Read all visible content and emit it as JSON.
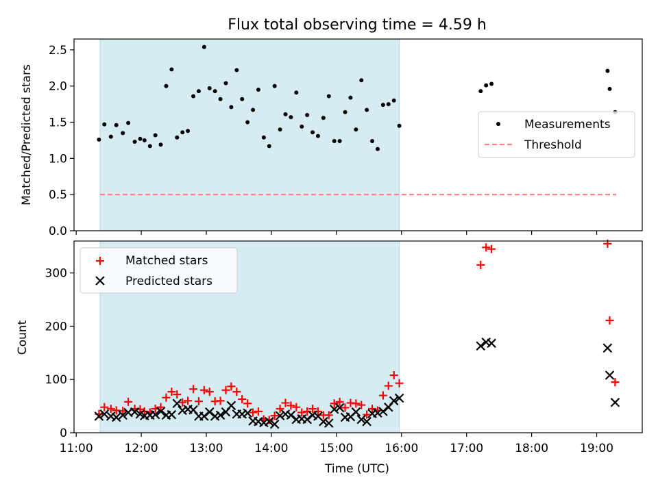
{
  "title": "Flux total observing time = 4.59 h",
  "colors": {
    "night_span": "#add8e6",
    "measurements": "#000000",
    "threshold": "#ff7f7f",
    "matched": "#ff0000",
    "predicted": "#000000"
  },
  "chart_data": [
    {
      "type": "scatter",
      "ylabel": "Matched/Predicted stars",
      "xlim": [
        "10:58",
        "19:42"
      ],
      "ylim": [
        0,
        2.65
      ],
      "yticks": [
        "0.0",
        "0.5",
        "1.0",
        "1.5",
        "2.0",
        "2.5"
      ],
      "shaded_span": [
        "11:22",
        "15:58"
      ],
      "legend_placement": "center-right",
      "series": [
        {
          "name": "Measurements",
          "marker": "dot",
          "points": [
            [
              "11:21",
              1.26
            ],
            [
              "11:26",
              1.47
            ],
            [
              "11:32",
              1.3
            ],
            [
              "11:37",
              1.46
            ],
            [
              "11:43",
              1.35
            ],
            [
              "11:48",
              1.49
            ],
            [
              "11:54",
              1.23
            ],
            [
              "11:59",
              1.27
            ],
            [
              "12:03",
              1.25
            ],
            [
              "12:08",
              1.17
            ],
            [
              "12:13",
              1.32
            ],
            [
              "12:18",
              1.19
            ],
            [
              "12:23",
              2.0
            ],
            [
              "12:28",
              2.23
            ],
            [
              "12:33",
              1.29
            ],
            [
              "12:38",
              1.36
            ],
            [
              "12:43",
              1.38
            ],
            [
              "12:48",
              1.86
            ],
            [
              "12:53",
              1.93
            ],
            [
              "12:58",
              2.54
            ],
            [
              "13:03",
              1.97
            ],
            [
              "13:08",
              1.93
            ],
            [
              "13:13",
              1.82
            ],
            [
              "13:18",
              2.04
            ],
            [
              "13:23",
              1.71
            ],
            [
              "13:28",
              2.22
            ],
            [
              "13:33",
              1.82
            ],
            [
              "13:38",
              1.5
            ],
            [
              "13:43",
              1.67
            ],
            [
              "13:48",
              1.95
            ],
            [
              "13:53",
              1.29
            ],
            [
              "13:58",
              1.17
            ],
            [
              "14:03",
              2.0
            ],
            [
              "14:08",
              1.4
            ],
            [
              "14:13",
              1.61
            ],
            [
              "14:18",
              1.57
            ],
            [
              "14:23",
              1.91
            ],
            [
              "14:28",
              1.44
            ],
            [
              "14:33",
              1.6
            ],
            [
              "14:38",
              1.36
            ],
            [
              "14:43",
              1.31
            ],
            [
              "14:48",
              1.56
            ],
            [
              "14:53",
              1.86
            ],
            [
              "14:58",
              1.24
            ],
            [
              "15:03",
              1.24
            ],
            [
              "15:08",
              1.64
            ],
            [
              "15:13",
              1.84
            ],
            [
              "15:18",
              1.4
            ],
            [
              "15:23",
              2.08
            ],
            [
              "15:28",
              1.67
            ],
            [
              "15:33",
              1.24
            ],
            [
              "15:38",
              1.13
            ],
            [
              "15:43",
              1.74
            ],
            [
              "15:48",
              1.75
            ],
            [
              "15:53",
              1.8
            ],
            [
              "15:58",
              1.45
            ],
            [
              "17:13",
              1.93
            ],
            [
              "17:18",
              2.01
            ],
            [
              "17:23",
              2.03
            ],
            [
              "19:10",
              2.21
            ],
            [
              "19:12",
              1.96
            ],
            [
              "19:17",
              1.64
            ]
          ]
        },
        {
          "name": "Threshold",
          "style": "dashed",
          "points": [
            [
              "11:22",
              0.5
            ],
            [
              "19:18",
              0.5
            ]
          ]
        }
      ]
    },
    {
      "type": "scatter",
      "xlabel": "Time (UTC)",
      "ylabel": "Count",
      "xlim": [
        "10:58",
        "19:42"
      ],
      "ylim": [
        0,
        360
      ],
      "xticks": [
        "11:00",
        "12:00",
        "13:00",
        "14:00",
        "15:00",
        "16:00",
        "17:00",
        "18:00",
        "19:00"
      ],
      "yticks": [
        "0",
        "100",
        "200",
        "300"
      ],
      "shaded_span": [
        "11:22",
        "15:58"
      ],
      "legend_placement": "upper-left",
      "series": [
        {
          "name": "Matched stars",
          "marker": "plus",
          "points": [
            [
              "11:21",
              35
            ],
            [
              "11:26",
              48
            ],
            [
              "11:32",
              45
            ],
            [
              "11:37",
              42
            ],
            [
              "11:43",
              41
            ],
            [
              "11:48",
              58
            ],
            [
              "11:54",
              45
            ],
            [
              "11:59",
              44
            ],
            [
              "12:03",
              40
            ],
            [
              "12:08",
              38
            ],
            [
              "12:13",
              45
            ],
            [
              "12:18",
              48
            ],
            [
              "12:23",
              66
            ],
            [
              "12:28",
              77
            ],
            [
              "12:33",
              72
            ],
            [
              "12:38",
              57
            ],
            [
              "12:43",
              60
            ],
            [
              "12:48",
              82
            ],
            [
              "12:53",
              59
            ],
            [
              "12:58",
              80
            ],
            [
              "13:03",
              77
            ],
            [
              "13:08",
              59
            ],
            [
              "13:13",
              60
            ],
            [
              "13:18",
              80
            ],
            [
              "13:23",
              87
            ],
            [
              "13:28",
              77
            ],
            [
              "13:33",
              63
            ],
            [
              "13:38",
              55
            ],
            [
              "13:43",
              38
            ],
            [
              "13:48",
              40
            ],
            [
              "13:53",
              25
            ],
            [
              "13:58",
              24
            ],
            [
              "14:03",
              32
            ],
            [
              "14:08",
              45
            ],
            [
              "14:13",
              56
            ],
            [
              "14:18",
              51
            ],
            [
              "14:23",
              48
            ],
            [
              "14:28",
              38
            ],
            [
              "14:33",
              40
            ],
            [
              "14:38",
              45
            ],
            [
              "14:43",
              40
            ],
            [
              "14:48",
              33
            ],
            [
              "14:53",
              33
            ],
            [
              "14:58",
              55
            ],
            [
              "15:03",
              58
            ],
            [
              "15:08",
              47
            ],
            [
              "15:13",
              56
            ],
            [
              "15:18",
              55
            ],
            [
              "15:23",
              52
            ],
            [
              "15:28",
              34
            ],
            [
              "15:33",
              45
            ],
            [
              "15:38",
              42
            ],
            [
              "15:43",
              70
            ],
            [
              "15:48",
              88
            ],
            [
              "15:53",
              108
            ],
            [
              "15:58",
              93
            ],
            [
              "17:13",
              315
            ],
            [
              "17:18",
              348
            ],
            [
              "17:23",
              345
            ],
            [
              "19:10",
              355
            ],
            [
              "19:12",
              211
            ],
            [
              "19:17",
              95
            ]
          ]
        },
        {
          "name": "Predicted stars",
          "marker": "x",
          "points": [
            [
              "11:21",
              31
            ],
            [
              "11:26",
              35
            ],
            [
              "11:32",
              31
            ],
            [
              "11:37",
              29
            ],
            [
              "11:43",
              33
            ],
            [
              "11:48",
              38
            ],
            [
              "11:54",
              39
            ],
            [
              "11:59",
              35
            ],
            [
              "12:03",
              32
            ],
            [
              "12:08",
              33
            ],
            [
              "12:13",
              34
            ],
            [
              "12:18",
              40
            ],
            [
              "12:23",
              33
            ],
            [
              "12:28",
              34
            ],
            [
              "12:33",
              55
            ],
            [
              "12:38",
              42
            ],
            [
              "12:43",
              44
            ],
            [
              "12:48",
              43
            ],
            [
              "12:53",
              31
            ],
            [
              "12:58",
              31
            ],
            [
              "13:03",
              39
            ],
            [
              "13:08",
              31
            ],
            [
              "13:13",
              33
            ],
            [
              "13:18",
              39
            ],
            [
              "13:23",
              51
            ],
            [
              "13:28",
              35
            ],
            [
              "13:33",
              35
            ],
            [
              "13:38",
              37
            ],
            [
              "13:43",
              22
            ],
            [
              "13:48",
              21
            ],
            [
              "13:53",
              19
            ],
            [
              "13:58",
              21
            ],
            [
              "14:03",
              16
            ],
            [
              "14:08",
              32
            ],
            [
              "14:13",
              35
            ],
            [
              "14:18",
              33
            ],
            [
              "14:23",
              25
            ],
            [
              "14:28",
              26
            ],
            [
              "14:33",
              25
            ],
            [
              "14:38",
              33
            ],
            [
              "14:43",
              31
            ],
            [
              "14:48",
              21
            ],
            [
              "14:53",
              18
            ],
            [
              "14:58",
              44
            ],
            [
              "15:03",
              47
            ],
            [
              "15:08",
              29
            ],
            [
              "15:13",
              30
            ],
            [
              "15:18",
              39
            ],
            [
              "15:23",
              25
            ],
            [
              "15:28",
              21
            ],
            [
              "15:33",
              36
            ],
            [
              "15:38",
              37
            ],
            [
              "15:43",
              40
            ],
            [
              "15:48",
              48
            ],
            [
              "15:53",
              60
            ],
            [
              "15:58",
              65
            ],
            [
              "17:13",
              163
            ],
            [
              "17:18",
              170
            ],
            [
              "17:23",
              168
            ],
            [
              "19:10",
              159
            ],
            [
              "19:12",
              108
            ],
            [
              "19:17",
              57
            ]
          ]
        }
      ]
    }
  ]
}
